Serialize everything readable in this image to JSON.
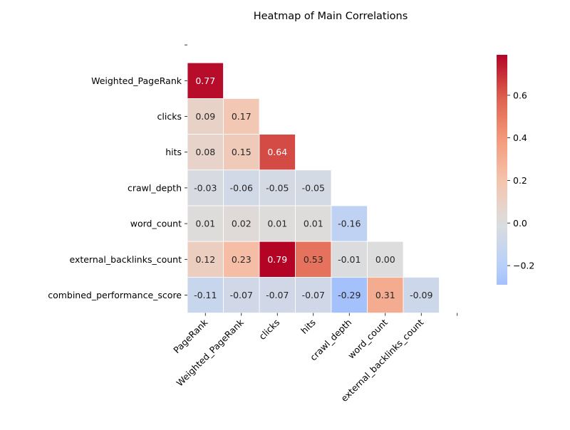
{
  "chart_data": {
    "type": "heatmap",
    "title": "Heatmap of Main Correlations",
    "rows": [
      "PageRank",
      "Weighted_PageRank",
      "clicks",
      "hits",
      "crawl_depth",
      "word_count",
      "external_backlinks_count",
      "combined_performance_score"
    ],
    "columns": [
      "PageRank",
      "Weighted_PageRank",
      "clicks",
      "hits",
      "crawl_depth",
      "word_count",
      "external_backlinks_count",
      "combined_performance_score"
    ],
    "row_labels": [
      "",
      "Weighted_PageRank",
      "clicks",
      "hits",
      "crawl_depth",
      "word_count",
      "external_backlinks_count",
      "combined_performance_score"
    ],
    "column_labels": [
      "PageRank",
      "Weighted_PageRank",
      "clicks",
      "hits",
      "crawl_depth",
      "word_count",
      "external_backlinks_count",
      ""
    ],
    "mask": "upper-triangle-including-diagonal",
    "values": [
      [
        null,
        null,
        null,
        null,
        null,
        null,
        null,
        null
      ],
      [
        0.77,
        null,
        null,
        null,
        null,
        null,
        null,
        null
      ],
      [
        0.09,
        0.17,
        null,
        null,
        null,
        null,
        null,
        null
      ],
      [
        0.08,
        0.15,
        0.64,
        null,
        null,
        null,
        null,
        null
      ],
      [
        -0.03,
        -0.06,
        -0.05,
        -0.05,
        null,
        null,
        null,
        null
      ],
      [
        0.01,
        0.02,
        0.01,
        0.01,
        -0.16,
        null,
        null,
        null
      ],
      [
        0.12,
        0.23,
        0.79,
        0.53,
        -0.01,
        0.0,
        null,
        null
      ],
      [
        -0.11,
        -0.07,
        -0.07,
        -0.07,
        -0.29,
        0.31,
        -0.09,
        null
      ]
    ],
    "colormap": "coolwarm",
    "center": 0,
    "vmin": -0.29,
    "vmax": 0.79,
    "colorbar": {
      "ticks": [
        -0.2,
        0.0,
        0.2,
        0.4,
        0.6
      ],
      "tick_labels": [
        "−0.2",
        "0.0",
        "0.2",
        "0.4",
        "0.6"
      ],
      "placement": "right"
    },
    "annotation_format": "2 decimals",
    "grid_line_color": "#ffffff"
  }
}
